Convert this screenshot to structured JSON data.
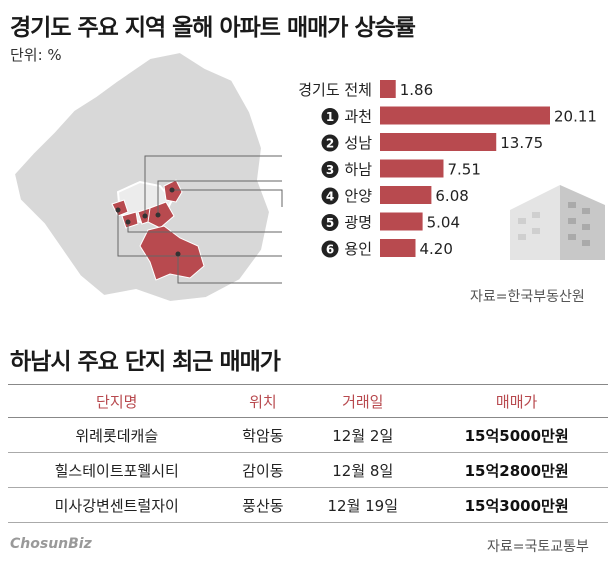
{
  "title": "경기도 주요 지역 올해 아파트 매매가 상승률",
  "unit": "단위: %",
  "colors": {
    "bar": "#b84a4f",
    "map_base": "#d8d8d8",
    "map_highlight": "#b84a4f",
    "header_text": "#b84a4f"
  },
  "chart_data": {
    "type": "bar",
    "orientation": "horizontal",
    "categories": [
      "경기도 전체",
      "과천",
      "성남",
      "하남",
      "안양",
      "광명",
      "용인"
    ],
    "badges": [
      "",
      "1",
      "2",
      "3",
      "4",
      "5",
      "6"
    ],
    "values": [
      1.86,
      20.11,
      13.75,
      7.51,
      6.08,
      5.04,
      4.2
    ],
    "value_labels": [
      "1.86",
      "20.11",
      "13.75",
      "7.51",
      "6.08",
      "5.04",
      "4.20"
    ],
    "xlim": [
      0,
      20.11
    ],
    "unit": "%"
  },
  "source1": "자료=한국부동산원",
  "table": {
    "title": "하남시 주요 단지 최근 매매가",
    "headers": [
      "단지명",
      "위치",
      "거래일",
      "매매가"
    ],
    "rows": [
      [
        "위례롯데캐슬",
        "학암동",
        "12월 2일",
        "15억5000만원"
      ],
      [
        "힐스테이트포웰시티",
        "감이동",
        "12월 8일",
        "15억2800만원"
      ],
      [
        "미사강변센트럴자이",
        "풍산동",
        "12월 19일",
        "15억3000만원"
      ]
    ]
  },
  "logo": "ChosunBiz",
  "source2": "자료=국토교통부"
}
